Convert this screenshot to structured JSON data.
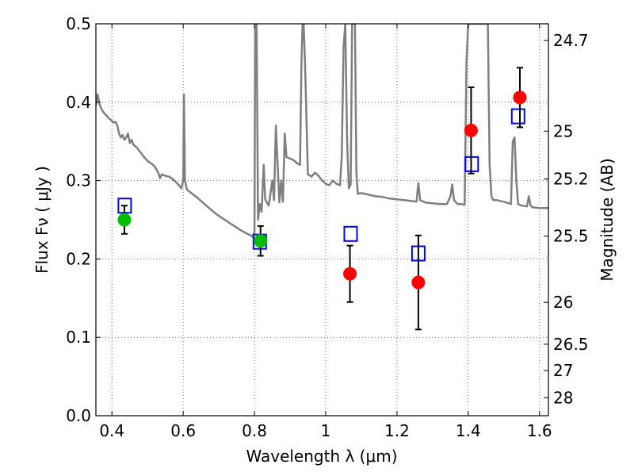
{
  "chart_data": {
    "type": "scatter",
    "xlabel": "Wavelength  λ (μm)",
    "ylabel": "Flux  Fν ( μJy )",
    "y2label": "Magnitude (AB)",
    "xlim": [
      0.355,
      1.625
    ],
    "ylim": [
      0.0,
      0.5
    ],
    "grid": true,
    "x_ticks": [
      0.4,
      0.6,
      0.8,
      1.0,
      1.2,
      1.4,
      1.6
    ],
    "x_tick_labels": [
      "0.4",
      "0.6",
      "0.8",
      "1",
      "1.2",
      "1.4",
      "1.6"
    ],
    "y_ticks": [
      0.0,
      0.1,
      0.2,
      0.3,
      0.4,
      0.5
    ],
    "y_tick_labels": [
      "0.0",
      "0.1",
      "0.2",
      "0.3",
      "0.4",
      "0.5"
    ],
    "y2_ticks": [
      {
        "mag": 24.7,
        "label": "24.7"
      },
      {
        "mag": 25.0,
        "label": "25"
      },
      {
        "mag": 25.2,
        "label": "25.2"
      },
      {
        "mag": 25.5,
        "label": "25.5"
      },
      {
        "mag": 26.0,
        "label": "26"
      },
      {
        "mag": 26.5,
        "label": "26.5"
      },
      {
        "mag": 27.0,
        "label": "27"
      },
      {
        "mag": 28.0,
        "label": "28"
      }
    ],
    "colors": {
      "spectrum": "#7f7f7f",
      "model_square": "#0000ff",
      "obs_red": "#ff0000",
      "obs_green": "#00bb00",
      "errorbar": "#000000",
      "grid": "#555555"
    },
    "series": [
      {
        "kind": "line",
        "x": [
          0.355,
          0.36,
          0.365,
          0.37,
          0.375,
          0.38,
          0.385,
          0.39,
          0.395,
          0.4,
          0.405,
          0.41,
          0.415,
          0.42,
          0.425,
          0.43,
          0.435,
          0.44,
          0.445,
          0.45,
          0.455,
          0.46,
          0.47,
          0.48,
          0.49,
          0.5,
          0.51,
          0.52,
          0.53,
          0.535,
          0.54,
          0.55,
          0.56,
          0.57,
          0.58,
          0.59,
          0.595,
          0.6,
          0.602,
          0.605,
          0.61,
          0.62,
          0.64,
          0.66,
          0.68,
          0.7,
          0.72,
          0.74,
          0.76,
          0.78,
          0.79,
          0.795,
          0.8,
          0.802,
          0.804,
          0.806,
          0.81,
          0.815,
          0.82,
          0.826,
          0.83,
          0.84,
          0.85,
          0.855,
          0.86,
          0.87,
          0.875,
          0.88,
          0.885,
          0.89,
          0.9,
          0.91,
          0.92,
          0.928,
          0.932,
          0.935,
          0.938,
          0.942,
          0.95,
          0.96,
          0.97,
          0.98,
          0.99,
          1.0,
          1.01,
          1.02,
          1.03,
          1.04,
          1.045,
          1.05,
          1.055,
          1.06,
          1.065,
          1.07,
          1.074,
          1.078,
          1.082,
          1.086,
          1.09,
          1.1,
          1.12,
          1.14,
          1.16,
          1.18,
          1.2,
          1.22,
          1.24,
          1.255,
          1.26,
          1.265,
          1.28,
          1.3,
          1.32,
          1.34,
          1.35,
          1.355,
          1.36,
          1.37,
          1.38,
          1.39,
          1.395,
          1.4,
          1.405,
          1.41,
          1.42,
          1.43,
          1.44,
          1.45,
          1.455,
          1.46,
          1.465,
          1.47,
          1.48,
          1.5,
          1.52,
          1.525,
          1.53,
          1.535,
          1.54,
          1.55,
          1.565,
          1.57,
          1.575,
          1.58,
          1.6,
          1.625
        ],
        "y": [
          0.395,
          0.41,
          0.398,
          0.392,
          0.388,
          0.385,
          0.383,
          0.38,
          0.378,
          0.376,
          0.374,
          0.375,
          0.37,
          0.36,
          0.355,
          0.358,
          0.352,
          0.355,
          0.36,
          0.348,
          0.352,
          0.346,
          0.342,
          0.336,
          0.33,
          0.325,
          0.322,
          0.318,
          0.31,
          0.303,
          0.308,
          0.306,
          0.305,
          0.302,
          0.298,
          0.293,
          0.29,
          0.3,
          0.41,
          0.3,
          0.289,
          0.285,
          0.278,
          0.27,
          0.262,
          0.255,
          0.249,
          0.243,
          0.237,
          0.232,
          0.23,
          0.228,
          0.234,
          0.5,
          0.5,
          0.5,
          0.25,
          0.27,
          0.26,
          0.32,
          0.276,
          0.268,
          0.3,
          0.275,
          0.37,
          0.272,
          0.3,
          0.273,
          0.36,
          0.33,
          0.328,
          0.326,
          0.322,
          0.32,
          0.45,
          0.5,
          0.5,
          0.45,
          0.308,
          0.305,
          0.31,
          0.306,
          0.3,
          0.296,
          0.294,
          0.3,
          0.296,
          0.294,
          0.33,
          0.47,
          0.5,
          0.35,
          0.29,
          0.295,
          0.5,
          0.5,
          0.5,
          0.31,
          0.283,
          0.284,
          0.282,
          0.28,
          0.279,
          0.277,
          0.276,
          0.275,
          0.274,
          0.273,
          0.297,
          0.275,
          0.272,
          0.271,
          0.27,
          0.27,
          0.28,
          0.295,
          0.275,
          0.27,
          0.27,
          0.269,
          0.45,
          0.5,
          0.5,
          0.5,
          0.5,
          0.5,
          0.5,
          0.5,
          0.5,
          0.32,
          0.28,
          0.275,
          0.275,
          0.273,
          0.27,
          0.35,
          0.355,
          0.3,
          0.27,
          0.268,
          0.267,
          0.28,
          0.268,
          0.266,
          0.265,
          0.265
        ]
      },
      {
        "kind": "open-squares",
        "x": [
          0.436,
          0.815,
          1.07,
          1.26,
          1.41,
          1.54
        ],
        "y": [
          0.268,
          0.222,
          0.232,
          0.207,
          0.321,
          0.382
        ]
      },
      {
        "kind": "red-points-with-errors",
        "x": [
          1.068,
          1.26,
          1.408,
          1.545
        ],
        "y": [
          0.181,
          0.17,
          0.364,
          0.406
        ],
        "yerr": [
          0.036,
          0.06,
          0.055,
          0.038
        ]
      },
      {
        "kind": "green-points-with-errors",
        "x": [
          0.435,
          0.817
        ],
        "y": [
          0.25,
          0.223
        ],
        "yerr": [
          0.018,
          0.019
        ]
      }
    ]
  }
}
